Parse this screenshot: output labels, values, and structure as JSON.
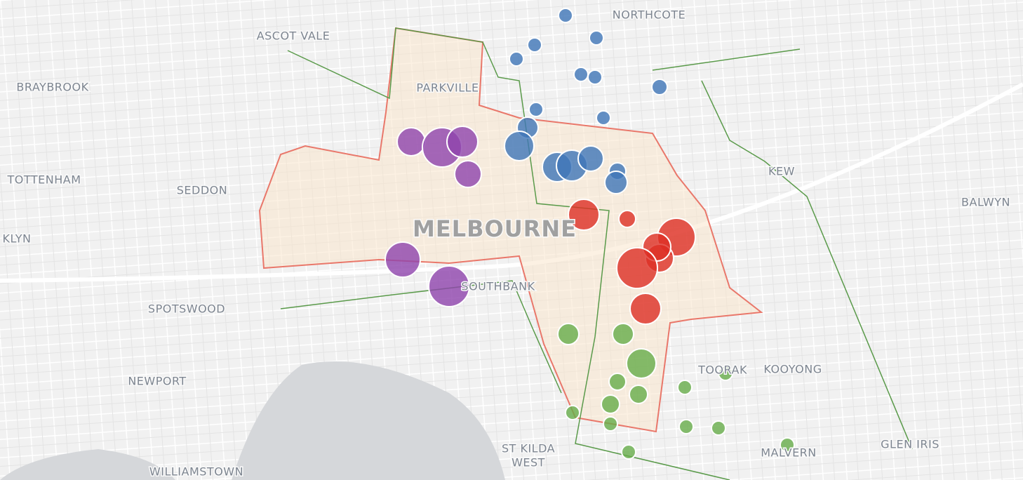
{
  "map": {
    "places": [
      "NORTHCOTE",
      "ASCOT VALE",
      "BRAYBROOK",
      "PARKVILLE",
      "TOTTENHAM",
      "SEDDON",
      "KEW",
      "BALWYN",
      "KLYN",
      "MELBOURNE",
      "SPOTSWOOD",
      "SOUTHBANK",
      "NEWPORT",
      "TOORAK",
      "KOOYONG",
      "GLEN IRIS",
      "MALVERN",
      "ST KILDA",
      "WEST",
      "WILLIAMSTOWN"
    ]
  }
}
